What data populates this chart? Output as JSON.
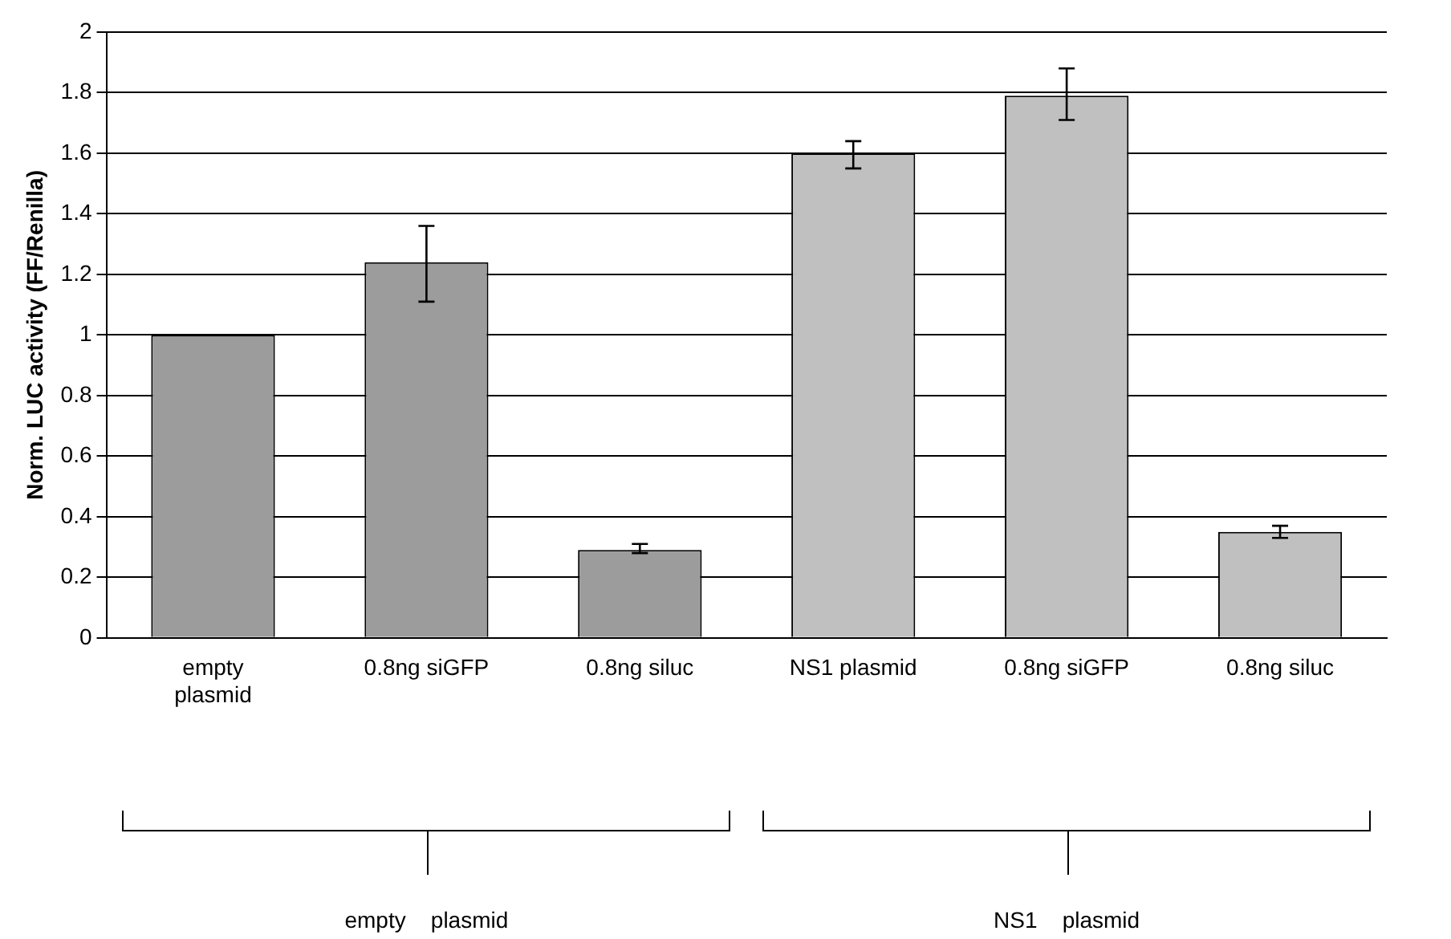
{
  "chart_data": {
    "type": "bar",
    "ylabel": "Norm. LUC activity (FF/Renilla)",
    "categories": [
      "empty plasmid",
      "0.8ng siGFP",
      "0.8ng siluc",
      "NS1 plasmid",
      "0.8ng siGFP",
      "0.8ng siluc"
    ],
    "values": [
      1.0,
      1.24,
      0.29,
      1.6,
      1.79,
      0.35
    ],
    "colors": [
      "#9c9c9c",
      "#9c9c9c",
      "#9c9c9c",
      "#c0c0c0",
      "#c0c0c0",
      "#c0c0c0"
    ],
    "errors": [
      null,
      [
        1.11,
        1.36
      ],
      [
        0.28,
        0.31
      ],
      [
        1.55,
        1.64
      ],
      [
        1.71,
        1.88
      ],
      [
        0.33,
        0.37
      ]
    ],
    "ylim": [
      0,
      2
    ],
    "yticks": [
      0,
      0.2,
      0.4,
      0.6,
      0.8,
      1,
      1.2,
      1.4,
      1.6,
      1.8,
      2
    ],
    "grid": "y",
    "legend": false,
    "annotations": [
      "empty    plasmid",
      "NS1    plasmid"
    ]
  }
}
